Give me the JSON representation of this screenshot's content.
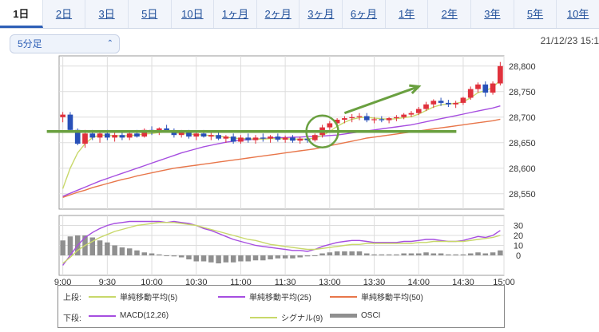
{
  "tabs": [
    {
      "label": "1日",
      "active": true
    },
    {
      "label": "2日"
    },
    {
      "label": "3日"
    },
    {
      "label": "5日"
    },
    {
      "label": "10日"
    },
    {
      "label": "1ヶ月"
    },
    {
      "label": "2ヶ月"
    },
    {
      "label": "3ヶ月"
    },
    {
      "label": "6ヶ月"
    },
    {
      "label": "1年"
    },
    {
      "label": "2年"
    },
    {
      "label": "3年"
    },
    {
      "label": "5年"
    },
    {
      "label": "10年"
    }
  ],
  "interval_select": {
    "value": "5分足",
    "icon": "chevron-updown-icon"
  },
  "timestamp": "21/12/23 15:1",
  "legend": {
    "upper_label": "上段:",
    "lower_label": "下段:",
    "upper_items": [
      {
        "name": "単純移動平均(5)",
        "color": "#c8d86a"
      },
      {
        "name": "単純移動平均(25)",
        "color": "#a64ee0"
      },
      {
        "name": "単純移動平均(50)",
        "color": "#e8764a"
      }
    ],
    "lower_items": [
      {
        "name": "MACD(12,26)",
        "color": "#a64ee0"
      },
      {
        "name": "シグナル(9)",
        "color": "#c8d86a"
      },
      {
        "name": "OSCI",
        "color": "#8f8f8f"
      }
    ]
  },
  "chart_data": {
    "type": "candlestick",
    "colors": {
      "up": "#e0313c",
      "down": "#2850b8",
      "flat": "#333333",
      "grid": "#dddddd",
      "annotation": "#6aa040",
      "sma5": "#c8d86a",
      "sma25": "#a64ee0",
      "sma50": "#e8764a",
      "macd": "#a64ee0",
      "signal": "#c8d86a",
      "osci": "#8f8f8f"
    },
    "x_ticks": [
      "9:00",
      "9:30",
      "10:00",
      "10:30",
      "11:00",
      "11:30",
      "13:00",
      "13:30",
      "14:00",
      "14:30",
      "15:00"
    ],
    "price_axis": {
      "ylim": [
        28520,
        28820
      ],
      "ticks": [
        28550,
        28600,
        28650,
        28700,
        28750,
        28800
      ],
      "tick_labels": [
        "28,550",
        "28,600",
        "28,650",
        "28,700",
        "28,750",
        "28,800"
      ]
    },
    "osc_axis": {
      "ylim": [
        -20,
        40
      ],
      "ticks": [
        0,
        10,
        20,
        30
      ]
    },
    "candles": [
      [
        28700,
        28710,
        28690,
        28705
      ],
      [
        28705,
        28710,
        28670,
        28675
      ],
      [
        28675,
        28678,
        28645,
        28648
      ],
      [
        28648,
        28675,
        28640,
        28668
      ],
      [
        28668,
        28675,
        28655,
        28660
      ],
      [
        28660,
        28672,
        28650,
        28668
      ],
      [
        28668,
        28675,
        28655,
        28660
      ],
      [
        28660,
        28670,
        28652,
        28665
      ],
      [
        28665,
        28672,
        28655,
        28660
      ],
      [
        28660,
        28670,
        28655,
        28668
      ],
      [
        28668,
        28675,
        28660,
        28662
      ],
      [
        28662,
        28678,
        28660,
        28675
      ],
      [
        28675,
        28682,
        28665,
        28670
      ],
      [
        28670,
        28680,
        28665,
        28678
      ],
      [
        28678,
        28685,
        28670,
        28672
      ],
      [
        28672,
        28678,
        28660,
        28665
      ],
      [
        28665,
        28675,
        28660,
        28670
      ],
      [
        28670,
        28675,
        28658,
        28662
      ],
      [
        28662,
        28672,
        28655,
        28668
      ],
      [
        28668,
        28675,
        28660,
        28662
      ],
      [
        28662,
        28670,
        28655,
        28665
      ],
      [
        28665,
        28670,
        28655,
        28658
      ],
      [
        28658,
        28665,
        28650,
        28662
      ],
      [
        28662,
        28668,
        28648,
        28652
      ],
      [
        28652,
        28665,
        28648,
        28660
      ],
      [
        28660,
        28668,
        28650,
        28655
      ],
      [
        28655,
        28665,
        28648,
        28660
      ],
      [
        28660,
        28668,
        28652,
        28658
      ],
      [
        28658,
        28665,
        28650,
        28662
      ],
      [
        28662,
        28668,
        28652,
        28656
      ],
      [
        28656,
        28664,
        28650,
        28660
      ],
      [
        28660,
        28665,
        28650,
        28654
      ],
      [
        28654,
        28662,
        28648,
        28658
      ],
      [
        28658,
        28664,
        28650,
        28655
      ],
      [
        28655,
        28668,
        28652,
        28665
      ],
      [
        28665,
        28685,
        28660,
        28680
      ],
      [
        28680,
        28692,
        28675,
        28688
      ],
      [
        28688,
        28698,
        28682,
        28695
      ],
      [
        28695,
        28702,
        28688,
        28698
      ],
      [
        28698,
        28706,
        28690,
        28700
      ],
      [
        28700,
        28708,
        28694,
        28702
      ],
      [
        28702,
        28708,
        28690,
        28694
      ],
      [
        28694,
        28700,
        28688,
        28696
      ],
      [
        28696,
        28702,
        28690,
        28694
      ],
      [
        28694,
        28700,
        28688,
        28698
      ],
      [
        28698,
        28704,
        28692,
        28700
      ],
      [
        28700,
        28708,
        28696,
        28705
      ],
      [
        28705,
        28712,
        28700,
        28708
      ],
      [
        28708,
        28720,
        28704,
        28716
      ],
      [
        28716,
        28730,
        28712,
        28725
      ],
      [
        28725,
        28735,
        28718,
        28732
      ],
      [
        28732,
        28738,
        28722,
        28728
      ],
      [
        28728,
        28734,
        28720,
        28725
      ],
      [
        28725,
        28732,
        28718,
        28728
      ],
      [
        28728,
        28740,
        28724,
        28738
      ],
      [
        28738,
        28760,
        28734,
        28755
      ],
      [
        28755,
        28768,
        28748,
        28764
      ],
      [
        28764,
        28770,
        28740,
        28748
      ],
      [
        28748,
        28770,
        28744,
        28766
      ],
      [
        28766,
        28808,
        28762,
        28800
      ]
    ],
    "sma5": [
      28560,
      28600,
      28630,
      28648,
      28660,
      28665,
      28664,
      28664,
      28663,
      28664,
      28665,
      28667,
      28668,
      28670,
      28671,
      28670,
      28668,
      28667,
      28666,
      28665,
      28664,
      28663,
      28661,
      28659,
      28658,
      28658,
      28657,
      28657,
      28658,
      28658,
      28658,
      28657,
      28657,
      28657,
      28659,
      28664,
      28672,
      28682,
      28690,
      28696,
      28699,
      28700,
      28698,
      28697,
      28696,
      28697,
      28699,
      28701,
      28706,
      28713,
      28720,
      28724,
      28726,
      28727,
      28730,
      28738,
      28748,
      28752,
      28758,
      28773
    ],
    "sma25": [
      28545,
      28551,
      28557,
      28563,
      28569,
      28575,
      28580,
      28585,
      28590,
      28595,
      28600,
      28605,
      28610,
      28615,
      28620,
      28625,
      28630,
      28634,
      28638,
      28642,
      28645,
      28648,
      28651,
      28653,
      28655,
      28656,
      28657,
      28658,
      28659,
      28660,
      28660,
      28661,
      28661,
      28662,
      28662,
      28663,
      28664,
      28665,
      28667,
      28669,
      28671,
      28673,
      28675,
      28677,
      28679,
      28681,
      28683,
      28685,
      28688,
      28691,
      28694,
      28697,
      28700,
      28703,
      28706,
      28709,
      28712,
      28715,
      28718,
      28722
    ],
    "sma50": [
      28543,
      28548,
      28553,
      28557,
      28562,
      28566,
      28570,
      28574,
      28578,
      28581,
      28585,
      28588,
      28591,
      28594,
      28597,
      28600,
      28602,
      28604,
      28606,
      28608,
      28610,
      28612,
      28614,
      28616,
      28618,
      28620,
      28622,
      28624,
      28626,
      28628,
      28630,
      28632,
      28634,
      28636,
      28638,
      28641,
      28644,
      28647,
      28650,
      28653,
      28656,
      28659,
      28661,
      28663,
      28665,
      28667,
      28669,
      28671,
      28673,
      28675,
      28677,
      28679,
      28681,
      28683,
      28685,
      28687,
      28689,
      28691,
      28693,
      28696
    ],
    "macd": [
      -10,
      0,
      10,
      18,
      23,
      27,
      30,
      32,
      33,
      34,
      34,
      34,
      34,
      34,
      33,
      34,
      33,
      32,
      30,
      27,
      25,
      22,
      19,
      16,
      14,
      12,
      10,
      9,
      8,
      7,
      6,
      5,
      5,
      4,
      6,
      9,
      11,
      13,
      14,
      15,
      15,
      14,
      13,
      13,
      13,
      13,
      14,
      14,
      15,
      16,
      16,
      15,
      14,
      14,
      15,
      17,
      19,
      18,
      20,
      25
    ],
    "signal": [
      -8,
      -2,
      5,
      10,
      14,
      18,
      21,
      24,
      26,
      28,
      30,
      31,
      32,
      33,
      33,
      33,
      32,
      31,
      30,
      28,
      26,
      24,
      22,
      20,
      18,
      16,
      15,
      13,
      11,
      10,
      9,
      8,
      7,
      6,
      6,
      7,
      8,
      9,
      10,
      11,
      11,
      12,
      12,
      12,
      12,
      12,
      12,
      12,
      13,
      13,
      14,
      14,
      14,
      14,
      14,
      15,
      16,
      17,
      18,
      20
    ],
    "osci": [
      15,
      19,
      20,
      20,
      18,
      15,
      13,
      10,
      8,
      7,
      5,
      3,
      2,
      1,
      0,
      -1,
      -2,
      -4,
      -6,
      -6,
      -7,
      -8,
      -7,
      -7,
      -6,
      -6,
      -5,
      -5,
      -4,
      -3,
      -3,
      -3,
      -2,
      -1,
      0,
      2,
      3,
      4,
      4,
      4,
      4,
      2,
      1,
      1,
      1,
      1,
      2,
      2,
      2,
      3,
      2,
      2,
      1,
      1,
      1,
      2,
      3,
      2,
      3,
      5
    ],
    "annotations": {
      "support_line": {
        "y": 28672,
        "from_index": 0,
        "to_index": 52
      },
      "circle": {
        "index": 35,
        "y": 28672
      },
      "arrow": {
        "from_index": 38,
        "from_y": 28708,
        "to_index": 48,
        "to_y": 28760
      }
    }
  }
}
